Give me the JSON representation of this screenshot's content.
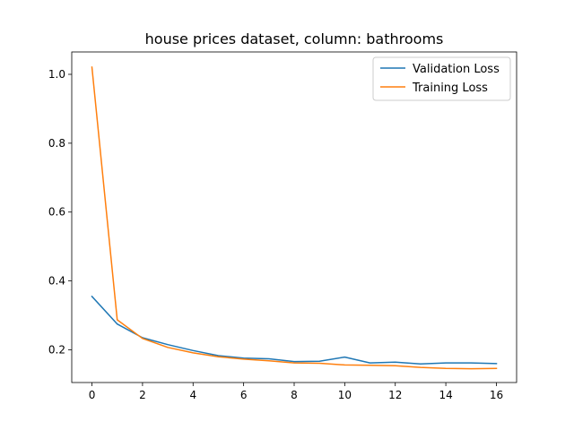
{
  "chart_data": {
    "type": "line",
    "title": "house prices dataset, column: bathrooms",
    "xlabel": "",
    "ylabel": "",
    "xlim": [
      -0.8,
      16.8
    ],
    "ylim": [
      0.105,
      1.065
    ],
    "x_ticks": [
      0,
      2,
      4,
      6,
      8,
      10,
      12,
      14,
      16
    ],
    "y_ticks": [
      0.2,
      0.4,
      0.6,
      0.8,
      1.0
    ],
    "y_tick_labels": [
      "0.2",
      "0.4",
      "0.6",
      "0.8",
      "1.0"
    ],
    "grid": false,
    "legend_position": "top-right",
    "x": [
      0,
      1,
      2,
      3,
      4,
      5,
      6,
      7,
      8,
      9,
      10,
      11,
      12,
      13,
      14,
      15,
      16
    ],
    "series": [
      {
        "name": "Validation Loss",
        "color": "#1f77b4",
        "values": [
          0.355,
          0.275,
          0.235,
          0.215,
          0.198,
          0.183,
          0.176,
          0.174,
          0.166,
          0.167,
          0.179,
          0.162,
          0.164,
          0.159,
          0.162,
          0.162,
          0.16
        ]
      },
      {
        "name": "Training Loss",
        "color": "#ff7f0e",
        "values": [
          1.021,
          0.287,
          0.233,
          0.207,
          0.191,
          0.18,
          0.173,
          0.168,
          0.162,
          0.161,
          0.156,
          0.155,
          0.154,
          0.149,
          0.146,
          0.145,
          0.146
        ]
      }
    ]
  }
}
